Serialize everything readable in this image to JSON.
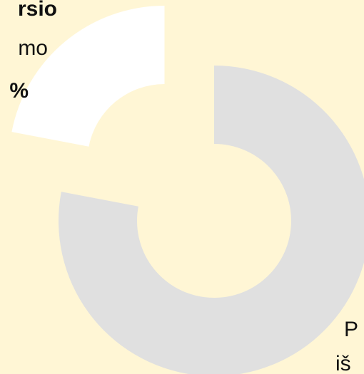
{
  "chart_data": {
    "type": "pie",
    "donut": true,
    "values": [
      78,
      22
    ],
    "colors": [
      "#e0e0e0",
      "#ffffff"
    ],
    "explode": [
      0,
      0.5
    ],
    "labels": [
      [
        "P",
        "iš"
      ],
      [
        "rsio",
        "mo",
        "%"
      ]
    ]
  }
}
